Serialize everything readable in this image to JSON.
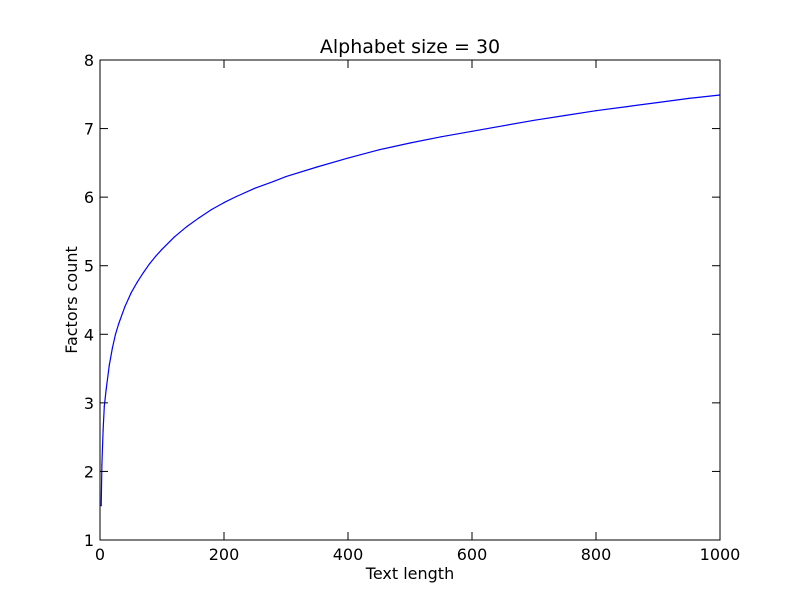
{
  "chart_data": {
    "type": "line",
    "title": "Alphabet size = 30",
    "xlabel": "Text length",
    "ylabel": "Factors count",
    "xlim": [
      0,
      1000
    ],
    "ylim": [
      1,
      8
    ],
    "xticks": [
      "0",
      "200",
      "400",
      "600",
      "800",
      "1000"
    ],
    "yticks": [
      "1",
      "2",
      "3",
      "4",
      "5",
      "6",
      "7",
      "8"
    ],
    "grid": false,
    "series": [
      {
        "color": "#0000ff",
        "x": [
          2,
          3,
          5,
          7,
          10,
          15,
          20,
          25,
          30,
          40,
          50,
          60,
          70,
          80,
          90,
          100,
          120,
          140,
          160,
          180,
          200,
          220,
          250,
          280,
          300,
          350,
          400,
          450,
          500,
          550,
          600,
          650,
          700,
          750,
          800,
          850,
          900,
          950,
          1000
        ],
        "y": [
          1.5,
          2.1,
          2.6,
          2.95,
          3.2,
          3.55,
          3.8,
          4.0,
          4.15,
          4.4,
          4.6,
          4.76,
          4.9,
          5.03,
          5.14,
          5.24,
          5.42,
          5.57,
          5.7,
          5.82,
          5.92,
          6.01,
          6.13,
          6.23,
          6.3,
          6.44,
          6.57,
          6.69,
          6.79,
          6.88,
          6.96,
          7.04,
          7.12,
          7.19,
          7.26,
          7.32,
          7.38,
          7.44,
          7.49
        ]
      }
    ]
  }
}
